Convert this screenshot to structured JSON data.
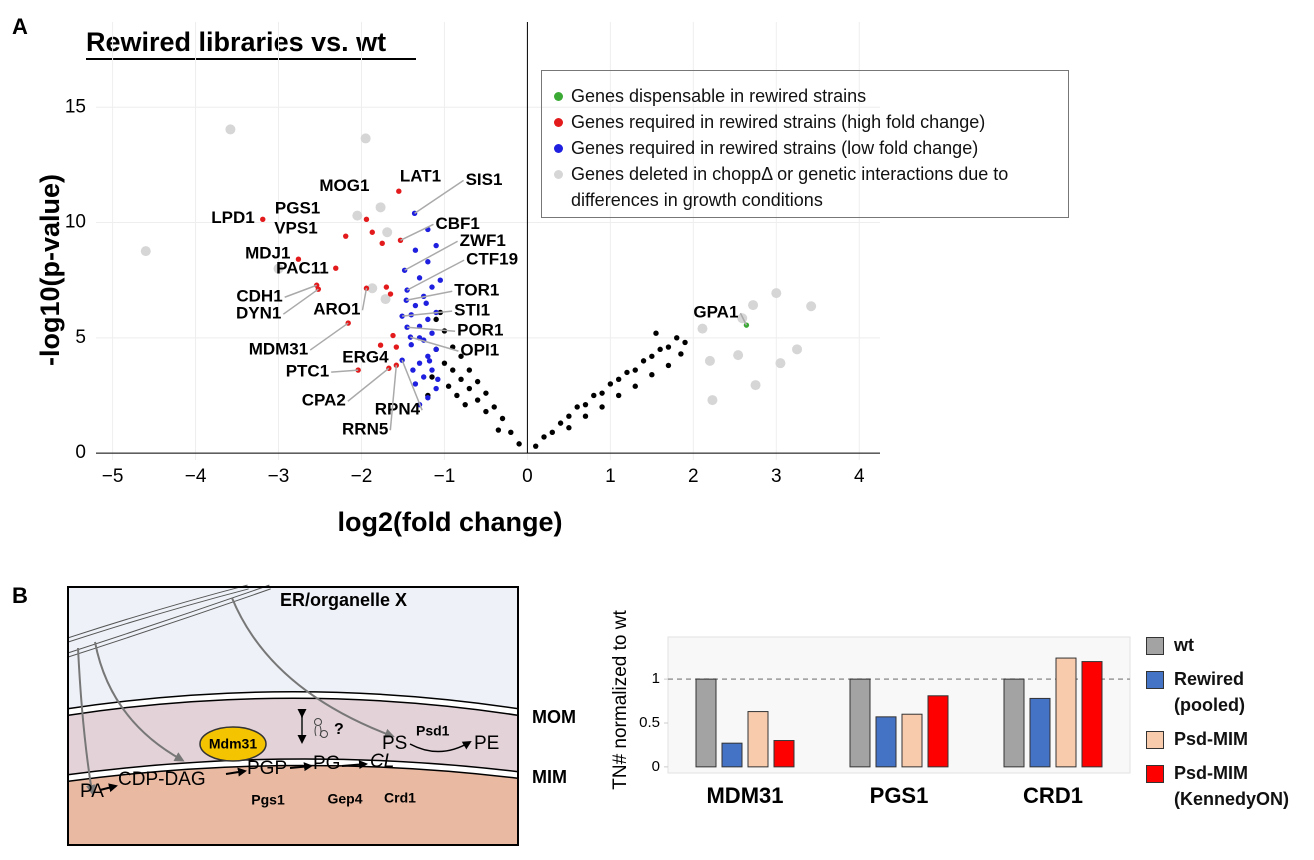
{
  "panel_labels": [
    "A",
    "B"
  ],
  "chart_data": [
    {
      "type": "scatter",
      "title": "Rewired libraries vs. wt",
      "x_label": "log2(fold change)",
      "y_label": "-log10(p-value)",
      "xlim": [
        -5.2,
        4.25
      ],
      "ylim": [
        -0.3,
        18.7
      ],
      "xticks": [
        {
          "value": -5,
          "label": "−5"
        },
        {
          "value": -4,
          "label": "−4"
        },
        {
          "value": -3,
          "label": "−3"
        },
        {
          "value": -2,
          "label": "−2"
        },
        {
          "value": -1,
          "label": "−1"
        },
        0,
        1,
        2,
        3,
        4
      ],
      "yticks": [
        0,
        5,
        10,
        15
      ],
      "grid": true,
      "legend": "upper right",
      "series": [
        {
          "name": "Genes dispensable in rewired strains",
          "color": "#3aaa35",
          "x": [
            2.64
          ],
          "y": [
            5.55
          ],
          "labels": [
            "GPA1"
          ]
        },
        {
          "name": "Genes required in rewired strains (high fold change)",
          "color": "#e31a1c",
          "x": [
            -1.55,
            -1.94,
            -1.87,
            -3.19,
            -2.19,
            -1.53,
            -2.76,
            -2.31,
            -2.54,
            -2.52,
            -1.94,
            -2.16,
            -1.77,
            -2.04,
            -1.67,
            -1.58,
            -1.75,
            -1.7,
            -1.62,
            -1.58,
            -1.65
          ],
          "y": [
            11.36,
            10.14,
            9.58,
            10.14,
            9.41,
            9.23,
            8.41,
            8.02,
            7.28,
            7.11,
            7.15,
            5.64,
            4.68,
            3.6,
            3.68,
            3.81,
            9.1,
            7.2,
            5.1,
            4.6,
            6.9
          ],
          "labels": [
            "LAT1",
            "MOG1",
            "PGS1",
            "LPD1",
            "VPS1",
            "CBF1",
            "MDJ1",
            "PAC11",
            "CDH1",
            "DYN1",
            "ARO1",
            "MDM31",
            "ERG4",
            "PTC1",
            "CPA2",
            "RRN5",
            null,
            null,
            null,
            null,
            null
          ]
        },
        {
          "name": "Genes required in rewired strains (low fold change)",
          "color": "#1f1fe0",
          "x": [
            -1.36,
            -1.48,
            -1.45,
            -1.46,
            -1.51,
            -1.45,
            -1.41,
            -1.51,
            -1.1,
            -1.2,
            -1.3,
            -1.15,
            -1.25,
            -1.35,
            -1.1,
            -1.2,
            -1.3,
            -1.15,
            -1.25,
            -1.4,
            -1.1,
            -1.2,
            -1.3,
            -1.15,
            -1.25,
            -1.35,
            -1.1,
            -1.2,
            -1.3,
            -1.4,
            -1.05,
            -1.35,
            -1.2,
            -1.3,
            -1.18,
            -1.08,
            -1.38,
            -1.22
          ],
          "y": [
            10.4,
            7.93,
            7.07,
            6.63,
            5.94,
            5.46,
            5.03,
            4.03,
            9.0,
            8.3,
            7.6,
            7.2,
            6.8,
            6.4,
            6.1,
            5.8,
            5.5,
            5.2,
            4.9,
            4.7,
            4.5,
            4.2,
            3.9,
            3.6,
            3.3,
            3.0,
            2.8,
            2.4,
            2.1,
            6.0,
            7.5,
            8.8,
            9.7,
            5.0,
            4.0,
            3.2,
            3.6,
            6.5
          ],
          "labels": [
            "SIS1",
            "ZWF1",
            "CTF19",
            "TOR1",
            "STI1",
            "POR1",
            "OPI1",
            "RPN4",
            null,
            null,
            null,
            null,
            null,
            null,
            null,
            null,
            null,
            null,
            null,
            null,
            null,
            null,
            null,
            null,
            null,
            null,
            null,
            null,
            null,
            null,
            null,
            null,
            null,
            null,
            null,
            null,
            null,
            null
          ]
        },
        {
          "name": "Genes deleted in choppΔ or genetic interactions due to differences in growth conditions",
          "color": "#d6d6d6",
          "x": [
            -3.58,
            -1.95,
            -4.6,
            -3.0,
            -2.05,
            -1.69,
            -1.77,
            -1.87,
            -1.71,
            2.23,
            2.72,
            3.0,
            3.42,
            3.25,
            3.05,
            2.75,
            2.54,
            2.2,
            2.11,
            2.59
          ],
          "y": [
            14.04,
            13.65,
            8.76,
            8.0,
            10.3,
            9.58,
            10.66,
            7.15,
            6.68,
            2.3,
            6.42,
            6.94,
            6.37,
            4.5,
            3.9,
            2.95,
            4.25,
            4.0,
            5.4,
            5.85
          ]
        },
        {
          "color": "#000000",
          "x": [
            -0.1,
            -0.2,
            -0.3,
            -0.35,
            -0.4,
            -0.5,
            -0.5,
            -0.6,
            -0.6,
            -0.7,
            -0.7,
            -0.8,
            -0.8,
            -0.9,
            -0.9,
            -1.0,
            -1.0,
            -1.05,
            -1.1,
            -1.1,
            -0.95,
            -0.85,
            -0.75,
            -1.2,
            -1.15,
            0.1,
            0.2,
            0.3,
            0.4,
            0.5,
            0.5,
            0.6,
            0.7,
            0.7,
            0.8,
            0.9,
            0.9,
            1.0,
            1.1,
            1.1,
            1.2,
            1.3,
            1.3,
            1.4,
            1.5,
            1.5,
            1.6,
            1.7,
            1.7,
            1.8,
            1.85,
            1.9,
            1.55
          ],
          "y": [
            0.4,
            0.9,
            1.5,
            1.0,
            2.0,
            2.6,
            1.8,
            3.1,
            2.3,
            3.6,
            2.8,
            4.2,
            3.2,
            4.6,
            3.6,
            5.3,
            3.9,
            6.1,
            4.5,
            5.8,
            2.9,
            2.5,
            2.1,
            2.5,
            3.3,
            0.3,
            0.7,
            0.9,
            1.3,
            1.6,
            1.1,
            2.0,
            2.1,
            1.6,
            2.5,
            2.6,
            2.0,
            3.0,
            3.2,
            2.5,
            3.5,
            3.6,
            2.9,
            4.0,
            4.2,
            3.4,
            4.5,
            4.6,
            3.8,
            5.0,
            4.3,
            4.8,
            5.2
          ]
        }
      ]
    },
    {
      "type": "bar",
      "y_label": "TN# normalized to wt",
      "categories": [
        "MDM31",
        "PGS1",
        "CRD1"
      ],
      "ylim": [
        -0.07,
        1.48
      ],
      "yticks": [
        0,
        0.5,
        1
      ],
      "hline": 1,
      "series": [
        {
          "name": "wt",
          "color": "#a3a3a3",
          "values": [
            1,
            1,
            1
          ]
        },
        {
          "name": "Rewired (pooled)",
          "color": "#4472c4",
          "values": [
            0.27,
            0.57,
            0.78
          ]
        },
        {
          "name": "Psd-MIM",
          "color": "#f8cbad",
          "values": [
            0.63,
            0.6,
            1.24
          ]
        },
        {
          "name": "Psd-MIM (KennedyON)",
          "color": "#ff0000",
          "values": [
            0.3,
            0.81,
            1.2
          ]
        }
      ]
    }
  ],
  "diagram": {
    "er_label": "ER/organelle X",
    "mom_label": "MOM",
    "mim_label": "MIM",
    "protein": "Mdm31",
    "unknown": "?",
    "ps": "PS",
    "psd1": "Psd1",
    "pe": "PE",
    "lipids": [
      "PA",
      "CDP-DAG",
      "PGP",
      "PG",
      "CL"
    ],
    "enzymes": [
      "Pgs1",
      "Gep4",
      "Crd1"
    ]
  }
}
